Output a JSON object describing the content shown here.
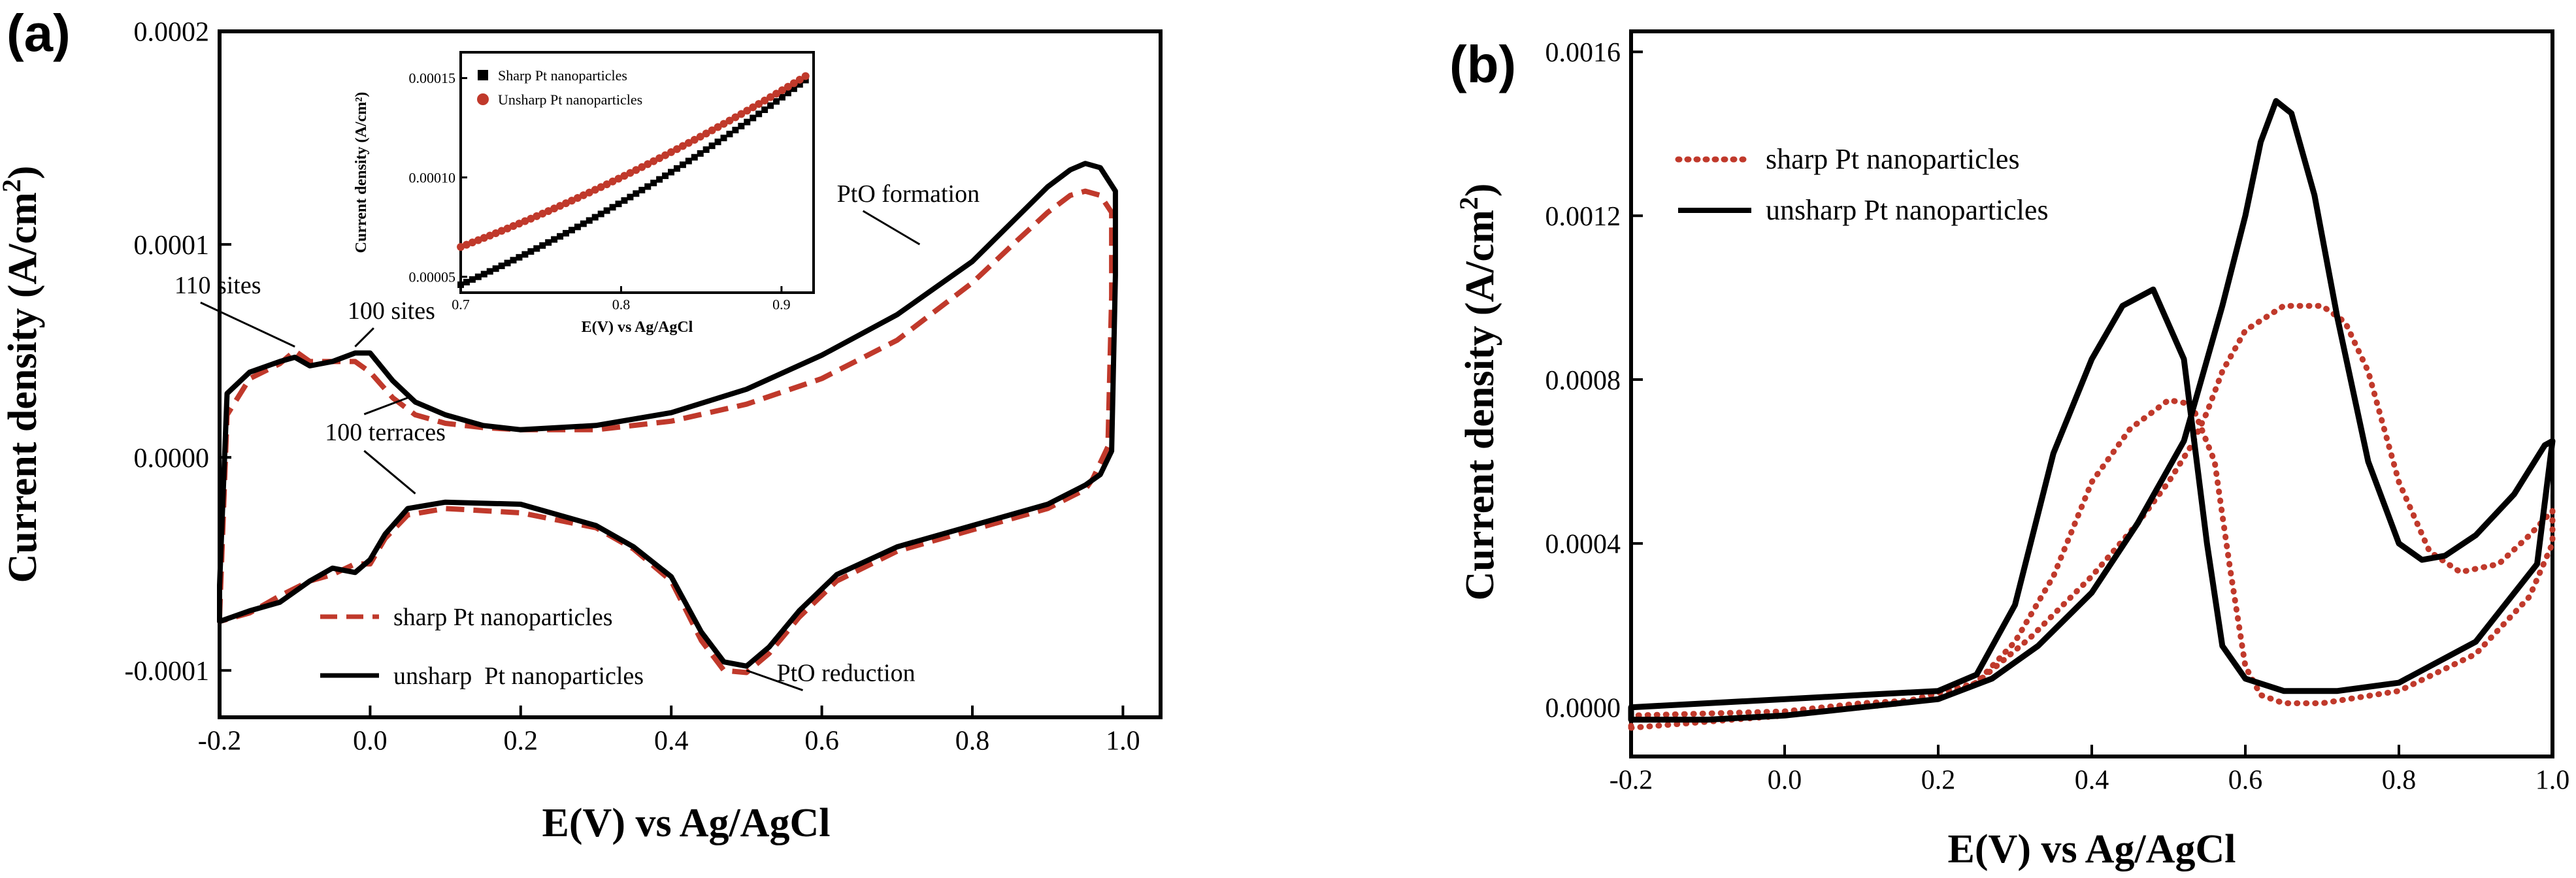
{
  "chart_data": [
    {
      "panel": "(a)",
      "type": "line",
      "xlabel": "E(V) vs Ag/AgCl",
      "ylabel": "Current density (A/cm",
      "ylabel_sup": "2",
      "ylabel_close": ")",
      "xlim": [
        -0.2,
        1.05
      ],
      "ylim": [
        -0.000122,
        0.0002
      ],
      "x_ticks": [
        -0.2,
        0.0,
        0.2,
        0.4,
        0.6,
        0.8,
        1.0
      ],
      "x_tick_labels": [
        "-0.2",
        "0.0",
        "0.2",
        "0.4",
        "0.6",
        "0.8",
        "1.0"
      ],
      "y_ticks": [
        -0.0001,
        0.0,
        0.0001,
        0.0002
      ],
      "y_tick_labels": [
        "-0.0001",
        "0.0000",
        "0.0001",
        "0.0002"
      ],
      "legend": "bottom-left",
      "series": [
        {
          "name": "sharp Pt nanoparticles",
          "color": "#c0392b",
          "style": "dashed",
          "x": [
            -0.2,
            -0.19,
            -0.16,
            -0.12,
            -0.1,
            -0.08,
            -0.05,
            -0.02,
            0.0,
            0.03,
            0.06,
            0.1,
            0.15,
            0.2,
            0.3,
            0.4,
            0.5,
            0.6,
            0.7,
            0.8,
            0.86,
            0.9,
            0.93,
            0.95,
            0.97,
            0.985,
            0.985,
            0.98,
            0.96,
            0.95,
            0.9,
            0.8,
            0.7,
            0.62,
            0.57,
            0.53,
            0.5,
            0.47,
            0.44,
            0.4,
            0.35,
            0.3,
            0.2,
            0.1,
            0.05,
            0.02,
            0.0,
            -0.02,
            -0.05,
            -0.08,
            -0.12,
            -0.16,
            -0.2
          ],
          "y": [
            -7.5e-05,
            2e-05,
            3.7e-05,
            4.4e-05,
            5e-05,
            4.5e-05,
            4.5e-05,
            4.5e-05,
            4e-05,
            2.8e-05,
            2e-05,
            1.6e-05,
            1.4e-05,
            1.3e-05,
            1.3e-05,
            1.7e-05,
            2.5e-05,
            3.7e-05,
            5.5e-05,
            8.2e-05,
            0.000102,
            0.000115,
            0.000123,
            0.000125,
            0.000123,
            0.000115,
            7.57e-05,
            5e-06,
            -1e-05,
            -1.5e-05,
            -2.4e-05,
            -3.4e-05,
            -4.4e-05,
            -5.8e-05,
            -7.5e-05,
            -9.2e-05,
            -0.000101,
            -0.0001,
            -8.6e-05,
            -5.8e-05,
            -4.3e-05,
            -3.3e-05,
            -2.6e-05,
            -2.4e-05,
            -2.7e-05,
            -3.8e-05,
            -5e-05,
            -5e-05,
            -5.5e-05,
            -5.8e-05,
            -6.5e-05,
            -7.3e-05,
            -7.7e-05
          ]
        },
        {
          "name": "unsharp  Pt nanoparticles",
          "color": "#000000",
          "style": "solid",
          "x": [
            -0.2,
            -0.19,
            -0.16,
            -0.12,
            -0.1,
            -0.08,
            -0.05,
            -0.02,
            0.0,
            0.03,
            0.06,
            0.1,
            0.15,
            0.2,
            0.3,
            0.4,
            0.5,
            0.6,
            0.7,
            0.8,
            0.86,
            0.9,
            0.93,
            0.95,
            0.97,
            0.99,
            0.99,
            0.985,
            0.97,
            0.95,
            0.9,
            0.8,
            0.7,
            0.62,
            0.57,
            0.53,
            0.5,
            0.47,
            0.44,
            0.4,
            0.35,
            0.3,
            0.2,
            0.1,
            0.05,
            0.02,
            0.0,
            -0.02,
            -0.05,
            -0.08,
            -0.12,
            -0.16,
            -0.2
          ],
          "y": [
            -6e-05,
            3e-05,
            4e-05,
            4.5e-05,
            4.7e-05,
            4.3e-05,
            4.5e-05,
            4.9e-05,
            4.9e-05,
            3.6e-05,
            2.6e-05,
            2e-05,
            1.5e-05,
            1.3e-05,
            1.5e-05,
            2.1e-05,
            3.2e-05,
            4.8e-05,
            6.7e-05,
            9.2e-05,
            0.000113,
            0.000127,
            0.000135,
            0.000138,
            0.000136,
            0.000125,
            8.54e-05,
            3e-06,
            -8e-06,
            -1.3e-05,
            -2.2e-05,
            -3.2e-05,
            -4.2e-05,
            -5.5e-05,
            -7.2e-05,
            -8.9e-05,
            -9.8e-05,
            -9.6e-05,
            -8.2e-05,
            -5.6e-05,
            -4.2e-05,
            -3.2e-05,
            -2.2e-05,
            -2.1e-05,
            -2.4e-05,
            -3.6e-05,
            -4.8e-05,
            -5.4e-05,
            -5.2e-05,
            -5.8e-05,
            -6.8e-05,
            -7.2e-05,
            -7.7e-05
          ]
        }
      ],
      "annotations": [
        {
          "text": "110 sites",
          "x": -0.26,
          "y": 7.7e-05,
          "ax": -0.1,
          "ay": 5.2e-05
        },
        {
          "text": "100 sites",
          "x": -0.03,
          "y": 6.5e-05,
          "ax": -0.02,
          "ay": 5.2e-05
        },
        {
          "text": "100 terraces",
          "x": -0.06,
          "y": 8e-06,
          "ax": 0.05,
          "ay": 2.8e-05,
          "bx": 0.06,
          "by": -1.7e-05
        },
        {
          "text": "PtO formation",
          "x": 0.62,
          "y": 0.00012,
          "ax": 0.73,
          "ay": 0.0001
        },
        {
          "text": "PtO reduction",
          "x": 0.54,
          "y": -0.000105,
          "ax": 0.5,
          "ay": -0.0001
        }
      ],
      "inset": {
        "xlabel": "E(V) vs Ag/AgCl",
        "ylabel": "Current density (A/cm²)",
        "xlim": [
          0.7,
          0.92
        ],
        "ylim": [
          4.2e-05,
          0.000163
        ],
        "x_ticks": [
          0.7,
          0.8,
          0.9
        ],
        "x_tick_labels": [
          "0.7",
          "0.8",
          "0.9"
        ],
        "y_ticks": [
          5e-05,
          0.0001,
          0.00015
        ],
        "y_tick_labels": [
          "0.00005",
          "0.00010",
          "0.00015"
        ],
        "series": [
          {
            "name": "Sharp Pt nanoparticles",
            "marker": "square",
            "color": "#000000",
            "x_start": 0.7,
            "x_end": 0.915,
            "y_start": 4.6e-05,
            "y_mid": 9.1e-05,
            "y_end": 0.000149
          },
          {
            "name": "Unsharp Pt nanoparticles",
            "marker": "circle",
            "color": "#c0392b",
            "x_start": 0.7,
            "x_end": 0.915,
            "y_start": 6.5e-05,
            "y_mid": 0.000103,
            "y_end": 0.000151
          }
        ]
      }
    },
    {
      "panel": "(b)",
      "type": "line",
      "xlabel": "E(V) vs Ag/AgCl",
      "ylabel": "Current density (A/cm",
      "ylabel_sup": "2",
      "ylabel_close": ")",
      "xlim": [
        -0.2,
        1.0
      ],
      "ylim": [
        -0.00012,
        0.00165
      ],
      "x_ticks": [
        -0.2,
        0.0,
        0.2,
        0.4,
        0.6,
        0.8,
        1.0
      ],
      "x_tick_labels": [
        "-0.2",
        "0.0",
        "0.2",
        "0.4",
        "0.6",
        "0.8",
        "1.0"
      ],
      "y_ticks": [
        0.0,
        0.0004,
        0.0008,
        0.0012,
        0.0016
      ],
      "y_tick_labels": [
        "0.0000",
        "0.0004",
        "0.0008",
        "0.0012",
        "0.0016"
      ],
      "legend": "top-left",
      "series": [
        {
          "name": "sharp Pt nanoparticles",
          "color": "#c0392b",
          "style": "dotted",
          "x": [
            -0.2,
            0.0,
            0.15,
            0.25,
            0.32,
            0.4,
            0.46,
            0.5,
            0.53,
            0.55,
            0.57,
            0.6,
            0.65,
            0.7,
            0.73,
            0.76,
            0.8,
            0.84,
            0.88,
            0.93,
            0.97,
            1.0,
            1.0,
            0.97,
            0.9,
            0.8,
            0.7,
            0.65,
            0.62,
            0.6,
            0.58,
            0.56,
            0.53,
            0.5,
            0.45,
            0.4,
            0.35,
            0.3,
            0.25,
            0.2,
            0.1,
            0.0,
            -0.2
          ],
          "y": [
            -5e-05,
            -2e-05,
            1e-05,
            6e-05,
            0.00017,
            0.00032,
            0.00045,
            0.00055,
            0.00064,
            0.00072,
            0.00082,
            0.00092,
            0.00098,
            0.00098,
            0.00094,
            0.00082,
            0.00055,
            0.00038,
            0.00033,
            0.00035,
            0.00042,
            0.00048,
            0.0004,
            0.00027,
            0.00013,
            4e-05,
            1e-05,
            1e-05,
            3e-05,
            0.0001,
            0.00034,
            0.0006,
            0.00074,
            0.00075,
            0.00068,
            0.00055,
            0.00032,
            0.00016,
            6e-05,
            2e-05,
            1e-05,
            -1e-05,
            -2e-05
          ]
        },
        {
          "name": "unsharp Pt nanoparticles",
          "color": "#000000",
          "style": "solid",
          "x": [
            -0.2,
            -0.1,
            0.0,
            0.1,
            0.2,
            0.27,
            0.33,
            0.4,
            0.46,
            0.52,
            0.57,
            0.6,
            0.62,
            0.64,
            0.66,
            0.69,
            0.72,
            0.76,
            0.8,
            0.83,
            0.86,
            0.9,
            0.95,
            0.99,
            1.0,
            0.98,
            0.9,
            0.8,
            0.72,
            0.65,
            0.6,
            0.57,
            0.55,
            0.52,
            0.48,
            0.44,
            0.4,
            0.35,
            0.3,
            0.25,
            0.2,
            0.1,
            0.0,
            -0.2
          ],
          "y": [
            -3e-05,
            -3e-05,
            -2e-05,
            0.0,
            2e-05,
            7e-05,
            0.00015,
            0.00028,
            0.00045,
            0.00065,
            0.00098,
            0.0012,
            0.00138,
            0.00148,
            0.00145,
            0.00125,
            0.00095,
            0.0006,
            0.0004,
            0.00036,
            0.00037,
            0.00042,
            0.00052,
            0.00064,
            0.00065,
            0.00035,
            0.00016,
            6e-05,
            4e-05,
            4e-05,
            7e-05,
            0.00015,
            0.0004,
            0.00085,
            0.00102,
            0.00098,
            0.00085,
            0.00062,
            0.00025,
            8e-05,
            4e-05,
            3e-05,
            2e-05,
            0.0
          ]
        }
      ]
    }
  ]
}
